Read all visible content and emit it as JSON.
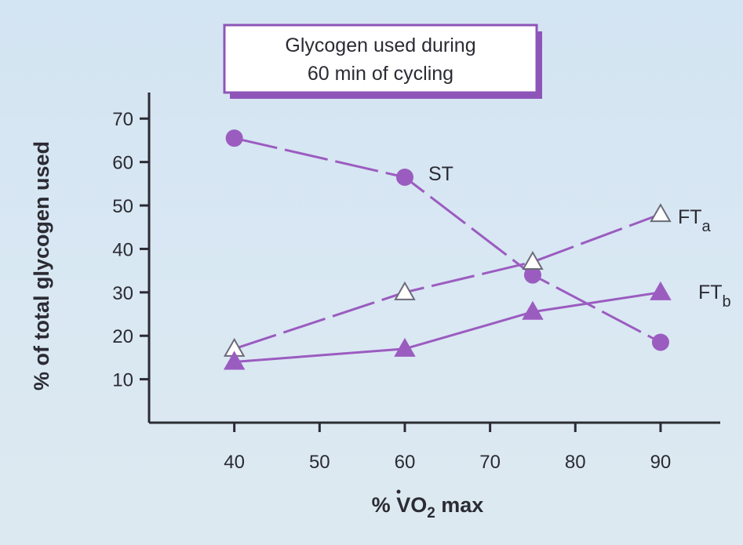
{
  "chart_data": {
    "type": "line",
    "title_lines": [
      "Glycogen used during",
      "60 min of cycling"
    ],
    "xlabel": {
      "prefix": "% ",
      "main": "VO",
      "sub": "2",
      "suffix": " max"
    },
    "ylabel": "% of total glycogen used",
    "x_ticks": [
      "40",
      "50",
      "60",
      "70",
      "80",
      "90"
    ],
    "y_ticks": [
      "10",
      "20",
      "30",
      "40",
      "50",
      "60",
      "70"
    ],
    "xlim": [
      30,
      97
    ],
    "ylim": [
      0,
      76
    ],
    "grid": false,
    "series": [
      {
        "name": "ST",
        "name_main": "ST",
        "name_sub": "",
        "marker": "filled-circle",
        "line": "long-dash",
        "x": [
          40,
          60,
          75,
          90
        ],
        "y": [
          65.5,
          56.5,
          34,
          18.5
        ]
      },
      {
        "name": "FTa",
        "name_main": "FT",
        "name_sub": "a",
        "marker": "open-triangle",
        "line": "long-dash",
        "x": [
          40,
          60,
          75,
          90
        ],
        "y": [
          17,
          30,
          37,
          48
        ]
      },
      {
        "name": "FTb",
        "name_main": "FT",
        "name_sub": "b",
        "marker": "filled-triangle",
        "line": "solid",
        "x": [
          40,
          60,
          75,
          90
        ],
        "y": [
          14,
          17,
          25.5,
          30
        ]
      }
    ],
    "colors": {
      "series": "#9b5cc0",
      "axis": "#2b2b33",
      "title_border": "#8e55b8",
      "title_fill": "#ffffff"
    }
  }
}
